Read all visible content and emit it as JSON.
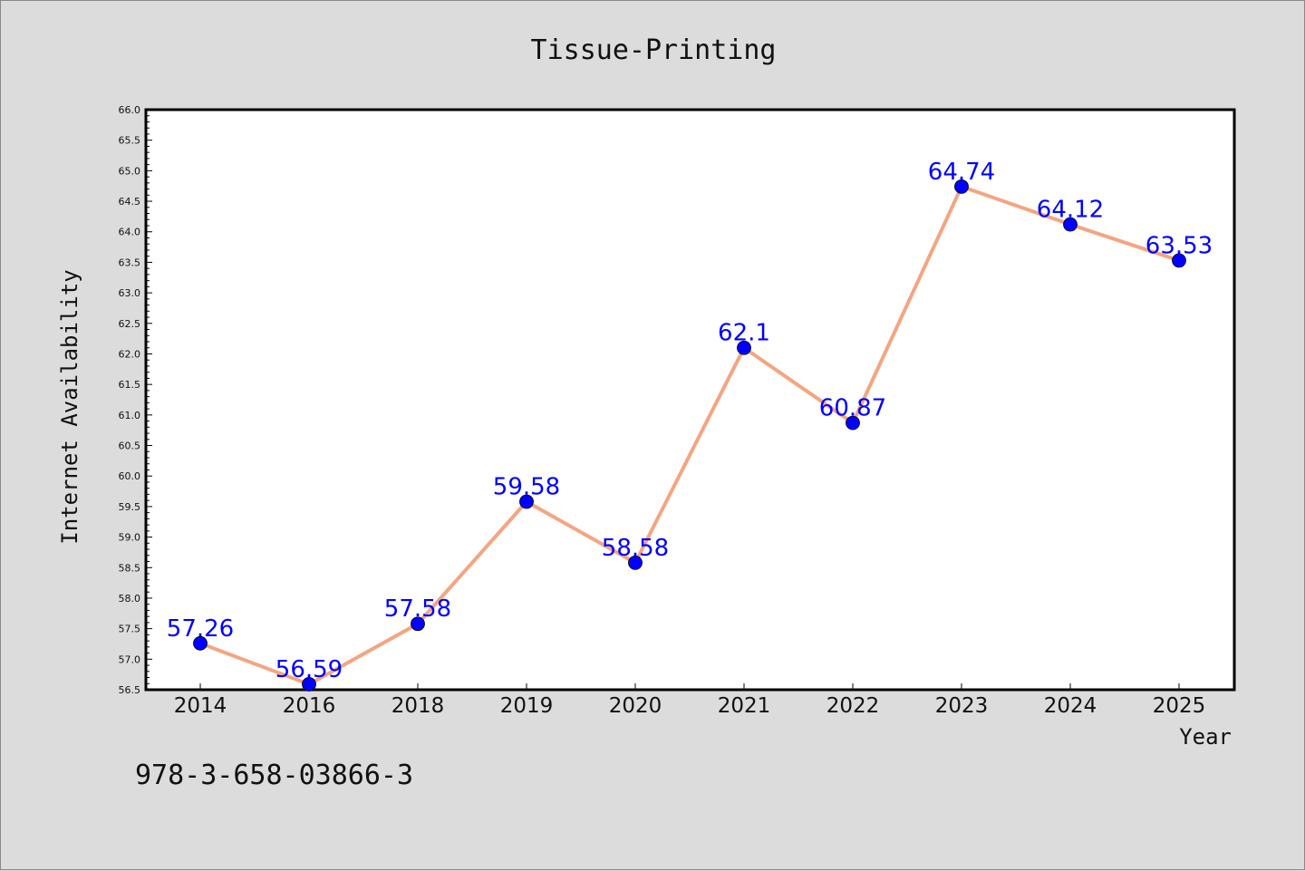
{
  "chart_data": {
    "type": "line",
    "title": "Tissue-Printing",
    "xlabel": "Year",
    "ylabel": "Internet Availability",
    "categories": [
      "2014",
      "2016",
      "2018",
      "2019",
      "2020",
      "2021",
      "2022",
      "2023",
      "2024",
      "2025"
    ],
    "series": [
      {
        "values": [
          57.26,
          56.59,
          57.58,
          59.58,
          58.58,
          62.1,
          60.87,
          64.74,
          64.12,
          63.53
        ],
        "labels": [
          "57.26",
          "56.59",
          "57.58",
          "59.58",
          "58.58",
          "62.1",
          "60.87",
          "64.74",
          "64.12",
          "63.53"
        ],
        "line_color": "#f4a582",
        "marker_color": "#0000ff"
      }
    ],
    "ylim": [
      56.5,
      66.0
    ],
    "ytick_step": 0.5,
    "grid": false,
    "legend": "none",
    "label_color": "#0000ff"
  },
  "footer": {
    "code": "978-3-658-03866-3"
  }
}
